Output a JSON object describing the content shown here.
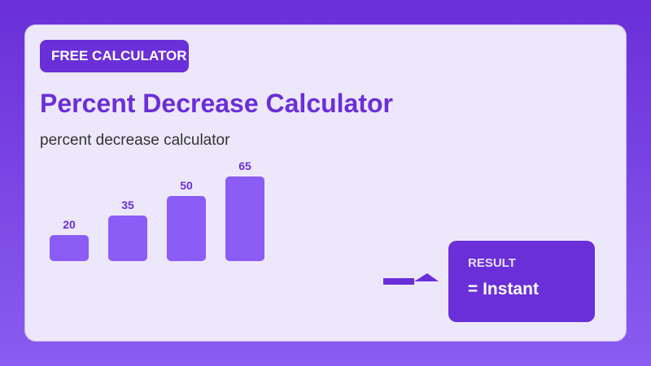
{
  "badge": {
    "label": "FREE CALCULATOR"
  },
  "title": "Percent Decrease Calculator",
  "subtitle": "percent decrease calculator",
  "result": {
    "label": "RESULT",
    "value": "= Instant"
  },
  "colors": {
    "accent": "#6a2fd8",
    "bar": "#8b5cf6",
    "card": "#ede7fb"
  },
  "chart_data": {
    "type": "bar",
    "categories": [
      "",
      "",
      "",
      ""
    ],
    "values": [
      20,
      35,
      50,
      65
    ],
    "title": "",
    "xlabel": "",
    "ylabel": ""
  }
}
